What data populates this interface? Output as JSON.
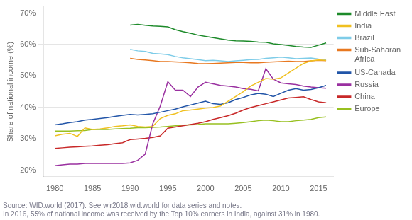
{
  "chart_data": {
    "type": "line",
    "y_label": "Share of national income (%)",
    "annotations": [
      "Source: WID.world (2017). See wir2018.wid.world for data series and notes.",
      "In 2016, 55% of national income was received by the Top 10% earners in India, against 31% in 1980."
    ],
    "x": [
      1980,
      1981,
      1982,
      1983,
      1984,
      1985,
      1986,
      1987,
      1988,
      1989,
      1990,
      1991,
      1992,
      1993,
      1994,
      1995,
      1996,
      1997,
      1998,
      1999,
      2000,
      2001,
      2002,
      2003,
      2004,
      2005,
      2006,
      2007,
      2008,
      2009,
      2010,
      2011,
      2012,
      2013,
      2014,
      2015,
      2016
    ],
    "xlim": [
      1978.5,
      2017
    ],
    "xticks": [
      1980,
      1985,
      1990,
      1995,
      2000,
      2005,
      2010,
      2015
    ],
    "ylim": [
      0.18,
      0.72
    ],
    "yticks": [
      {
        "value": 0.2,
        "label": "20%"
      },
      {
        "value": 0.3,
        "label": "30%"
      },
      {
        "value": 0.4,
        "label": "40%"
      },
      {
        "value": 0.5,
        "label": "50%"
      },
      {
        "value": 0.6,
        "label": "60%"
      },
      {
        "value": 0.7,
        "label": "70%"
      }
    ],
    "grid": "y",
    "legend": "right",
    "series": [
      {
        "name": "Middle East",
        "color": "#1d8a2a",
        "values": [
          null,
          null,
          null,
          null,
          null,
          null,
          null,
          null,
          null,
          null,
          0.662,
          0.664,
          0.661,
          0.659,
          0.658,
          0.656,
          0.647,
          0.641,
          0.636,
          0.63,
          0.626,
          0.622,
          0.618,
          0.614,
          0.612,
          0.611,
          0.61,
          0.608,
          0.607,
          0.602,
          0.6,
          0.597,
          0.594,
          0.592,
          0.591,
          0.598,
          0.605
        ]
      },
      {
        "name": "India",
        "color": "#f0c020",
        "values": [
          0.31,
          0.315,
          0.318,
          0.308,
          0.335,
          0.33,
          0.332,
          0.335,
          0.34,
          0.342,
          0.345,
          0.34,
          0.338,
          0.34,
          0.365,
          0.375,
          0.38,
          0.39,
          0.392,
          0.395,
          0.398,
          0.4,
          0.405,
          0.42,
          0.435,
          0.45,
          0.468,
          0.48,
          0.492,
          0.49,
          0.494,
          0.51,
          0.525,
          0.54,
          0.548,
          0.551,
          0.55
        ]
      },
      {
        "name": "Brazil",
        "color": "#7ecce8",
        "values": [
          null,
          null,
          null,
          null,
          null,
          null,
          null,
          null,
          null,
          null,
          0.585,
          0.58,
          0.578,
          0.572,
          0.57,
          0.568,
          0.562,
          0.558,
          0.555,
          0.552,
          0.549,
          0.55,
          0.548,
          0.546,
          0.548,
          0.55,
          0.552,
          0.553,
          0.556,
          0.558,
          0.56,
          0.558,
          0.555,
          0.556,
          0.557,
          0.554,
          0.552
        ]
      },
      {
        "name": "Sub-Saharan\nAfrica",
        "color": "#e87820",
        "values": [
          null,
          null,
          null,
          null,
          null,
          null,
          null,
          null,
          null,
          null,
          0.556,
          0.553,
          0.551,
          0.549,
          0.546,
          0.546,
          0.545,
          0.544,
          0.542,
          0.54,
          0.539,
          0.54,
          0.541,
          0.542,
          0.543,
          0.543,
          0.542,
          0.542,
          0.544,
          0.545,
          0.546,
          0.547,
          0.546,
          0.546,
          0.548,
          0.55,
          0.549
        ]
      },
      {
        "name": "US-Canada",
        "color": "#2255a8",
        "values": [
          0.345,
          0.348,
          0.352,
          0.355,
          0.36,
          0.362,
          0.365,
          0.368,
          0.372,
          0.375,
          0.378,
          0.376,
          0.378,
          0.38,
          0.385,
          0.39,
          0.395,
          0.402,
          0.408,
          0.414,
          0.42,
          0.412,
          0.41,
          0.415,
          0.425,
          0.432,
          0.44,
          0.445,
          0.442,
          0.435,
          0.445,
          0.455,
          0.46,
          0.455,
          0.457,
          0.463,
          0.47
        ]
      },
      {
        "name": "Russia",
        "color": "#9a30a0",
        "values": [
          0.215,
          0.218,
          0.22,
          0.22,
          0.222,
          0.222,
          0.222,
          0.222,
          0.222,
          0.222,
          0.224,
          0.232,
          0.252,
          0.348,
          0.405,
          0.482,
          0.455,
          0.455,
          0.435,
          0.465,
          0.48,
          0.475,
          0.47,
          0.468,
          0.465,
          0.46,
          0.458,
          0.453,
          0.523,
          0.49,
          0.478,
          0.475,
          0.473,
          0.468,
          0.465,
          0.463,
          0.461
        ]
      },
      {
        "name": "China",
        "color": "#c82828",
        "values": [
          0.27,
          0.272,
          0.274,
          0.275,
          0.277,
          0.278,
          0.28,
          0.282,
          0.285,
          0.288,
          0.298,
          0.3,
          0.302,
          0.305,
          0.31,
          0.334,
          0.338,
          0.342,
          0.346,
          0.35,
          0.355,
          0.362,
          0.368,
          0.374,
          0.382,
          0.392,
          0.4,
          0.406,
          0.412,
          0.418,
          0.424,
          0.43,
          0.432,
          0.434,
          0.425,
          0.418,
          0.415
        ]
      },
      {
        "name": "Europe",
        "color": "#98c020",
        "values": [
          0.325,
          0.325,
          0.325,
          0.326,
          0.327,
          0.33,
          0.33,
          0.33,
          0.332,
          0.333,
          0.334,
          0.336,
          0.336,
          0.337,
          0.338,
          0.34,
          0.342,
          0.344,
          0.345,
          0.346,
          0.348,
          0.348,
          0.348,
          0.348,
          0.35,
          0.352,
          0.355,
          0.358,
          0.36,
          0.358,
          0.355,
          0.355,
          0.358,
          0.36,
          0.362,
          0.368,
          0.37
        ]
      }
    ]
  }
}
